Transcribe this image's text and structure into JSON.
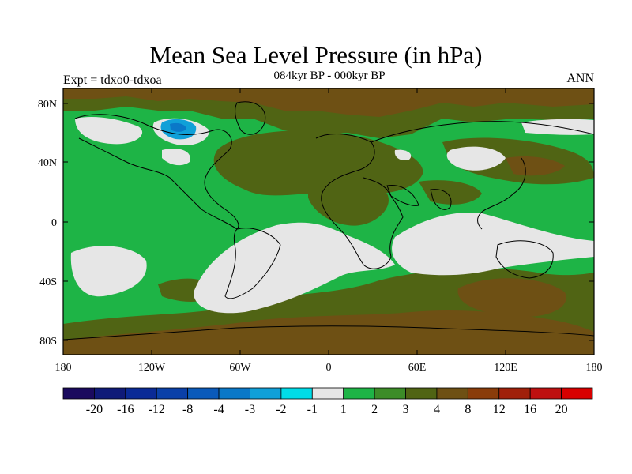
{
  "title": "Mean Sea Level Pressure (in hPa)",
  "subtitle": "084kyr BP - 000kyr BP",
  "expt_label": "Expt = tdxo0-tdxoa",
  "season_label": "ANN",
  "lat_labels": [
    "80N",
    "40N",
    "0",
    "40S",
    "80S"
  ],
  "lon_labels": [
    "180",
    "120W",
    "60W",
    "0",
    "60E",
    "120E",
    "180"
  ],
  "colorbar": {
    "colors": [
      "#1a0a5e",
      "#0f1a78",
      "#0a2a96",
      "#0a40a8",
      "#0a5aba",
      "#0a78c8",
      "#10a0d8",
      "#00dce8",
      "#e6e6e6",
      "#1eb446",
      "#3c8c28",
      "#506414",
      "#6e5014",
      "#8a3c0a",
      "#a0200a",
      "#be1010",
      "#d80000"
    ],
    "labels": [
      "-20",
      "-16",
      "-12",
      "-8",
      "-4",
      "-3",
      "-2",
      "-1",
      "1",
      "2",
      "3",
      "4",
      "8",
      "12",
      "16",
      "20"
    ]
  },
  "fill_colors": {
    "green": "#1eb446",
    "olive": "#506414",
    "brown": "#6e5014",
    "grey": "#e6e6e6",
    "cyan": "#10a0d8",
    "darkcyan": "#0a78c8"
  }
}
